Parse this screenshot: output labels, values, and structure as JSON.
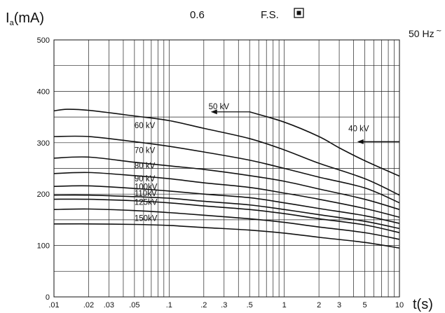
{
  "header": {
    "ylabel_main": "I",
    "ylabel_sub": "a",
    "ylabel_unit": "(mA)",
    "focus_value": "0.6",
    "focus_label": "F.S.",
    "frequency": "50 Hz",
    "xlabel": "t(s)"
  },
  "chart_data": {
    "type": "line",
    "xscale": "log",
    "xlim": [
      0.01,
      10
    ],
    "ylim": [
      0,
      500
    ],
    "grid": true,
    "xlabel": "t(s)",
    "ylabel": "Ia(mA)",
    "x_ticks": [
      {
        "v": 0.01,
        "label": ".01"
      },
      {
        "v": 0.02,
        "label": ".02"
      },
      {
        "v": 0.03,
        "label": ".03"
      },
      {
        "v": 0.05,
        "label": ".05"
      },
      {
        "v": 0.1,
        "label": ".1"
      },
      {
        "v": 0.2,
        "label": ".2"
      },
      {
        "v": 0.3,
        "label": ".3"
      },
      {
        "v": 0.5,
        "label": ".5"
      },
      {
        "v": 1,
        "label": "1"
      },
      {
        "v": 2,
        "label": "2"
      },
      {
        "v": 3,
        "label": "3"
      },
      {
        "v": 5,
        "label": "5"
      },
      {
        "v": 10,
        "label": "10"
      }
    ],
    "y_ticks": [
      {
        "v": 0,
        "label": "0"
      },
      {
        "v": 100,
        "label": "100"
      },
      {
        "v": 200,
        "label": "200"
      },
      {
        "v": 300,
        "label": "300"
      },
      {
        "v": 400,
        "label": "400"
      },
      {
        "v": 500,
        "label": "500"
      }
    ],
    "series": [
      {
        "name": "40 kV",
        "x": [
          0.5,
          1,
          2,
          3,
          5,
          10
        ],
        "y": [
          360,
          340,
          312,
          290,
          265,
          235
        ]
      },
      {
        "name": "50 kV",
        "x": [
          0.01,
          0.013,
          0.02,
          0.05,
          0.1,
          0.2,
          0.5,
          1,
          2,
          5,
          10
        ],
        "y": [
          362,
          365,
          363,
          352,
          343,
          328,
          308,
          286,
          260,
          230,
          198
        ]
      },
      {
        "name": "60 kV",
        "x": [
          0.01,
          0.02,
          0.05,
          0.1,
          0.2,
          0.5,
          1,
          2,
          5,
          10
        ],
        "y": [
          312,
          312,
          302,
          293,
          282,
          266,
          250,
          233,
          212,
          183
        ]
      },
      {
        "name": "70 kV",
        "x": [
          0.01,
          0.02,
          0.05,
          0.1,
          0.2,
          0.5,
          1,
          2,
          5,
          10
        ],
        "y": [
          270,
          272,
          262,
          255,
          248,
          236,
          225,
          210,
          190,
          170
        ]
      },
      {
        "name": "80 kV",
        "x": [
          0.01,
          0.02,
          0.05,
          0.1,
          0.2,
          0.5,
          1,
          2,
          5,
          10
        ],
        "y": [
          240,
          242,
          236,
          230,
          222,
          213,
          202,
          190,
          172,
          155
        ]
      },
      {
        "name": "90 kV",
        "x": [
          0.01,
          0.02,
          0.05,
          0.1,
          0.2,
          0.5,
          1,
          2,
          5,
          10
        ],
        "y": [
          215,
          216,
          211,
          206,
          200,
          193,
          183,
          172,
          158,
          143
        ]
      },
      {
        "name": "100kV",
        "x": [
          0.01,
          0.02,
          0.05,
          0.1,
          0.2,
          0.5,
          1,
          2,
          5,
          10
        ],
        "y": [
          198,
          198,
          195,
          192,
          186,
          179,
          170,
          160,
          147,
          133
        ]
      },
      {
        "name": "110kV",
        "x": [
          0.01,
          0.02,
          0.05,
          0.1,
          0.2,
          0.5,
          1,
          2,
          5,
          10
        ],
        "y": [
          190,
          190,
          187,
          183,
          177,
          170,
          162,
          152,
          140,
          125
        ]
      },
      {
        "name": "125kV",
        "x": [
          0.01,
          0.02,
          0.05,
          0.1,
          0.2,
          0.5,
          1,
          2,
          5,
          10
        ],
        "y": [
          170,
          171,
          168,
          164,
          159,
          152,
          145,
          136,
          125,
          112
        ]
      },
      {
        "name": "150kV",
        "x": [
          0.01,
          0.02,
          0.05,
          0.1,
          0.2,
          0.5,
          1,
          2,
          5,
          10
        ],
        "y": [
          142,
          142,
          141,
          139,
          135,
          130,
          124,
          116,
          106,
          95
        ]
      }
    ],
    "curve_labels": [
      {
        "series": "50 kV",
        "x": 0.22,
        "y": 365
      },
      {
        "series": "60 kV",
        "x": 0.05,
        "y": 328
      },
      {
        "series": "70 kV",
        "x": 0.05,
        "y": 280
      },
      {
        "series": "80 kV",
        "x": 0.05,
        "y": 250
      },
      {
        "series": "90 kV",
        "x": 0.05,
        "y": 225
      },
      {
        "series": "100kV",
        "x": 0.05,
        "y": 209
      },
      {
        "series": "110kV",
        "x": 0.05,
        "y": 196
      },
      {
        "series": "125kV",
        "x": 0.05,
        "y": 179
      },
      {
        "series": "150kV",
        "x": 0.05,
        "y": 148
      },
      {
        "series": "40 kV",
        "x": 3.6,
        "y": 322
      }
    ],
    "arrows": [
      {
        "name": "arrow-50kv",
        "x_from": 0.5,
        "x_to": 0.23,
        "y": 360
      },
      {
        "name": "arrow-40kv",
        "x_from": 10,
        "x_to": 4.3,
        "y": 302
      }
    ]
  }
}
